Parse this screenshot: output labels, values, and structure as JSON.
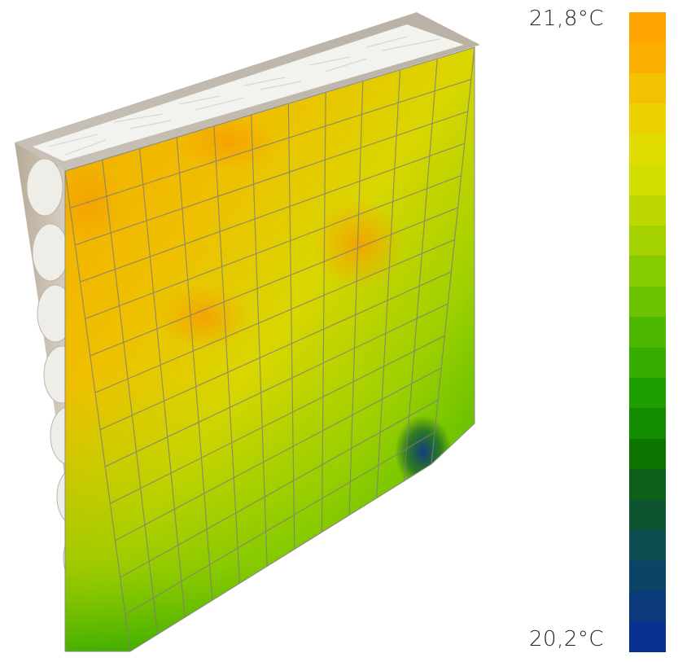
{
  "legend": {
    "max_label": "21,8°C",
    "min_label": "20,2°C",
    "max_value": 21.8,
    "min_value": 20.2,
    "unit": "°C"
  },
  "colorbar_steps": [
    "#FFA300",
    "#F9AE00",
    "#F3C100",
    "#EBD100",
    "#E1DC00",
    "#D2DE00",
    "#BCD800",
    "#A3D200",
    "#86CB00",
    "#6AC200",
    "#4DB800",
    "#34AD00",
    "#1E9E00",
    "#128B00",
    "#0E7400",
    "#0C6019",
    "#0E5430",
    "#0D4D52",
    "#0C4468",
    "#0B3A7A",
    "#08308E"
  ],
  "panel_grid": {
    "columns": 11,
    "rows": 13
  }
}
